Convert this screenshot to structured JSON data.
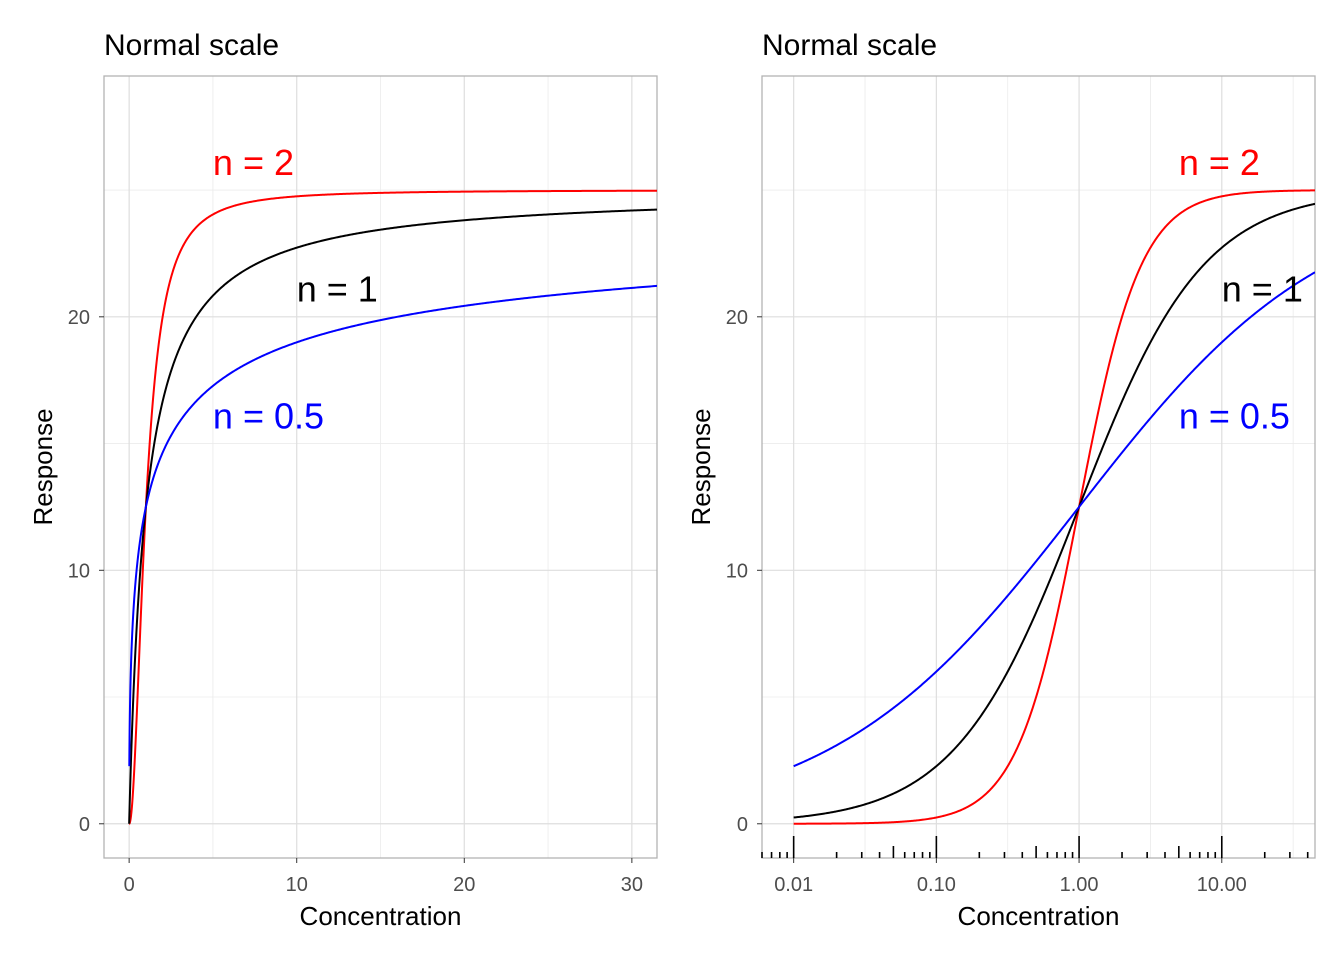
{
  "chart_data": [
    {
      "type": "line",
      "title": "Normal scale",
      "xlabel": "Concentration",
      "ylabel": "Response",
      "x_scale": "linear",
      "xlim": [
        -1.5,
        31.5
      ],
      "ylim": [
        -1.35,
        29.5
      ],
      "x_ticks": [
        0,
        10,
        20,
        30
      ],
      "x_tick_labels": [
        "0",
        "10",
        "20",
        "30"
      ],
      "y_ticks": [
        0,
        10,
        20
      ],
      "y_tick_labels": [
        "0",
        "10",
        "20"
      ],
      "grid": true,
      "series": [
        {
          "name": "n = 2",
          "color": "#ff0000",
          "hill_n": 2,
          "ec50": 1,
          "top": 25,
          "x_range": [
            0,
            31.5
          ]
        },
        {
          "name": "n = 1",
          "color": "#000000",
          "hill_n": 1,
          "ec50": 1,
          "top": 25,
          "x_range": [
            0,
            31.5
          ]
        },
        {
          "name": "n = 0.5",
          "color": "#0000ff",
          "hill_n": 0.5,
          "ec50": 1,
          "top": 25,
          "x_range": [
            0.01,
            31.5
          ]
        }
      ],
      "annotations": [
        {
          "text": "n = 2",
          "color": "#ff0000",
          "x": 5,
          "y": 25.6
        },
        {
          "text": "n = 1",
          "color": "#000000",
          "x": 10,
          "y": 20.6
        },
        {
          "text": "n = 0.5",
          "color": "#0000ff",
          "x": 5,
          "y": 15.6
        }
      ]
    },
    {
      "type": "line",
      "title": "Normal scale",
      "xlabel": "Concentration",
      "ylabel": "Response",
      "x_scale": "log10",
      "xlim": [
        0.006,
        45
      ],
      "ylim": [
        -1.35,
        29.5
      ],
      "x_ticks": [
        0.01,
        0.1,
        1,
        10
      ],
      "x_tick_labels": [
        "0.01",
        "0.10",
        "1.00",
        "10.00"
      ],
      "y_ticks": [
        0,
        10,
        20
      ],
      "y_tick_labels": [
        "0",
        "10",
        "20"
      ],
      "grid": true,
      "rug_ticks": true,
      "series": [
        {
          "name": "n = 2",
          "color": "#ff0000",
          "hill_n": 2,
          "ec50": 1,
          "top": 25,
          "x_range": [
            0.01,
            45
          ]
        },
        {
          "name": "n = 1",
          "color": "#000000",
          "hill_n": 1,
          "ec50": 1,
          "top": 25,
          "x_range": [
            0.01,
            45
          ]
        },
        {
          "name": "n = 0.5",
          "color": "#0000ff",
          "hill_n": 0.5,
          "ec50": 1,
          "top": 25,
          "x_range": [
            0.01,
            45
          ]
        }
      ],
      "annotations": [
        {
          "text": "n = 2",
          "color": "#ff0000",
          "x": 5,
          "y": 25.6
        },
        {
          "text": "n = 1",
          "color": "#000000",
          "x": 10,
          "y": 20.6
        },
        {
          "text": "n = 0.5",
          "color": "#0000ff",
          "x": 5,
          "y": 15.6
        }
      ]
    }
  ]
}
